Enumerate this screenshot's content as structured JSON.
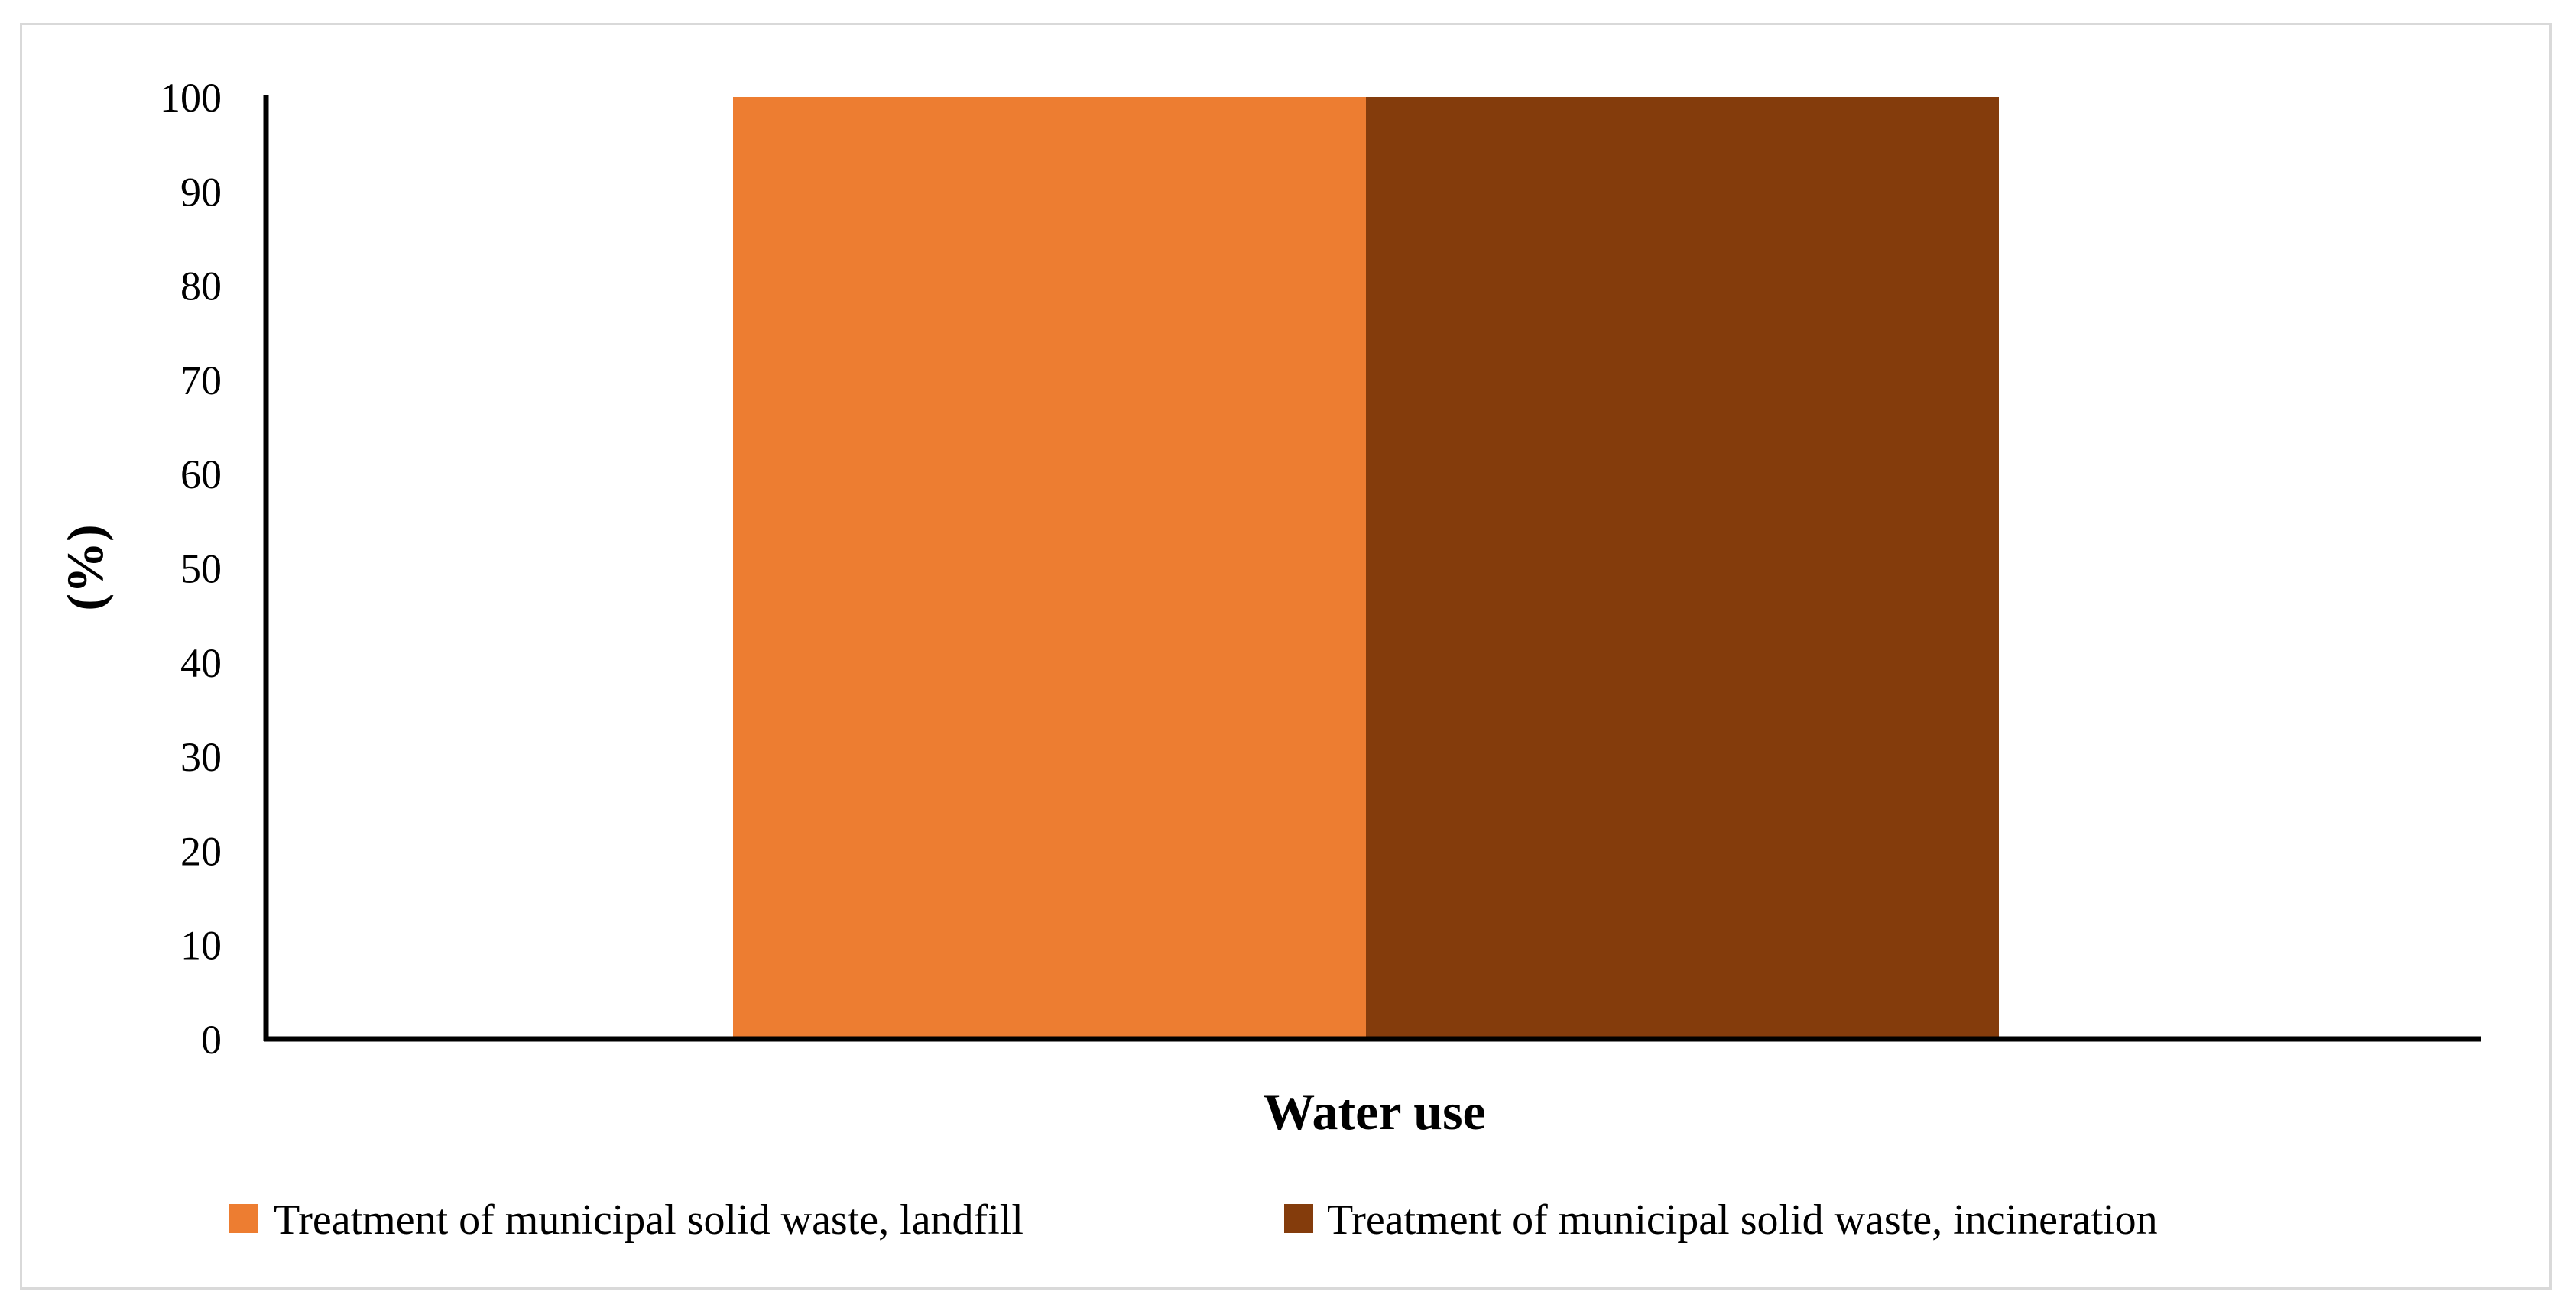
{
  "chart_data": {
    "type": "bar",
    "categories": [
      "Water use"
    ],
    "series": [
      {
        "name": "Treatment of municipal solid waste, landfill",
        "values": [
          100
        ],
        "color": "#ED7D31"
      },
      {
        "name": "Treatment of municipal solid waste, incineration",
        "values": [
          100
        ],
        "color": "#843C0C"
      }
    ],
    "xlabel": "Water use",
    "ylabel": "(%)",
    "ylim": [
      0,
      100
    ],
    "yticks": [
      "0",
      "10",
      "20",
      "30",
      "40",
      "50",
      "60",
      "70",
      "80",
      "90",
      "100"
    ],
    "grid": false,
    "legend_position": "bottom"
  }
}
